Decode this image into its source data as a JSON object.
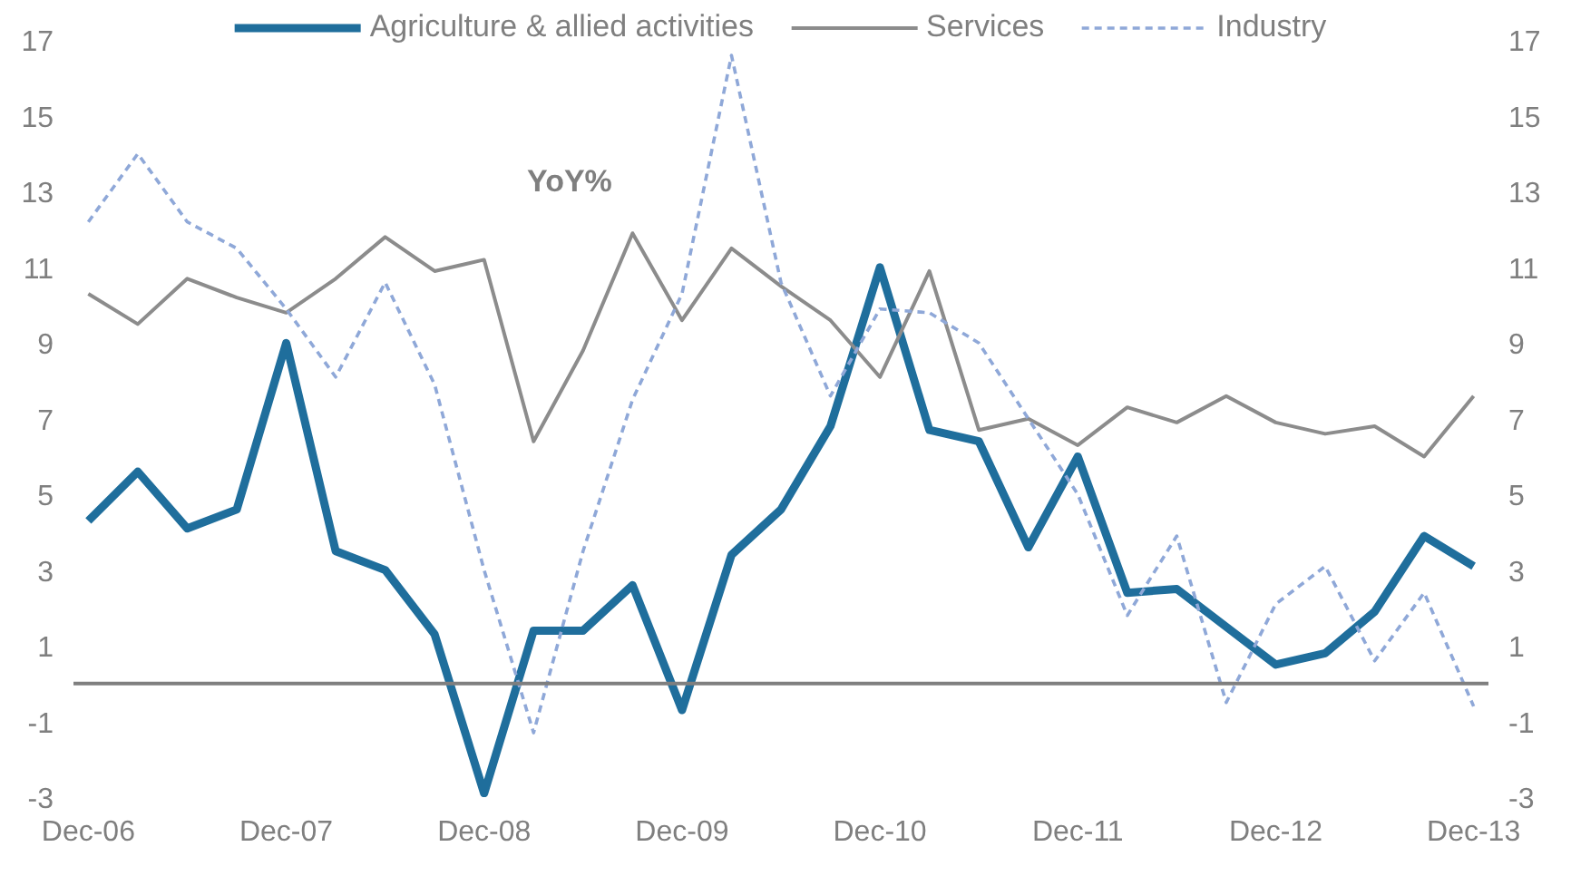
{
  "chart_data": {
    "type": "line",
    "categories": [
      "Dec-06",
      null,
      null,
      null,
      "Dec-07",
      null,
      null,
      null,
      "Dec-08",
      null,
      null,
      null,
      "Dec-09",
      null,
      null,
      null,
      "Dec-10",
      null,
      null,
      null,
      "Dec-11",
      null,
      null,
      null,
      "Dec-12",
      null,
      null,
      null,
      "Dec-13"
    ],
    "series": [
      {
        "name": "Agriculture & allied activities",
        "color": "#1f6e9c",
        "line_style": "solid",
        "values": [
          4.3,
          5.6,
          4.1,
          4.6,
          9.0,
          3.5,
          3.0,
          1.3,
          -2.9,
          1.4,
          1.4,
          2.6,
          -0.7,
          3.4,
          4.6,
          6.8,
          11.0,
          6.7,
          6.4,
          3.6,
          6.0,
          2.4,
          2.5,
          1.5,
          0.5,
          0.8,
          1.9,
          3.9,
          3.1
        ]
      },
      {
        "name": "Services",
        "color": "#8c8c8c",
        "line_style": "solid",
        "values": [
          10.3,
          9.5,
          10.7,
          10.2,
          9.8,
          10.7,
          11.8,
          10.9,
          11.2,
          6.4,
          8.8,
          11.9,
          9.6,
          11.5,
          10.5,
          9.6,
          8.1,
          10.9,
          6.7,
          7.0,
          6.3,
          7.3,
          6.9,
          7.6,
          6.9,
          6.6,
          6.8,
          6.0,
          7.6
        ]
      },
      {
        "name": "Industry",
        "color": "#8fa8d8",
        "line_style": "dashed",
        "values": [
          12.2,
          14.0,
          12.2,
          11.5,
          9.9,
          8.1,
          10.6,
          7.9,
          3.0,
          -1.3,
          3.5,
          7.5,
          10.3,
          16.6,
          10.6,
          7.6,
          9.9,
          9.8,
          9.0,
          7.0,
          5.0,
          1.8,
          3.9,
          -0.5,
          2.1,
          3.1,
          0.6,
          2.4,
          -0.6
        ]
      }
    ],
    "ylim": [
      -3,
      17
    ],
    "yticks": [
      -3,
      -1,
      1,
      3,
      5,
      7,
      9,
      11,
      13,
      15,
      17
    ],
    "y2lim": [
      -3,
      17
    ],
    "y2ticks": [
      -3,
      -1,
      1,
      3,
      5,
      7,
      9,
      11,
      13,
      15,
      17
    ],
    "ref_lines": [
      {
        "axis": "y",
        "value": 0,
        "color": "#7f7f7f"
      }
    ],
    "annotations": [
      "YoY%"
    ],
    "legend": "top",
    "grid": false,
    "marker": "none"
  }
}
